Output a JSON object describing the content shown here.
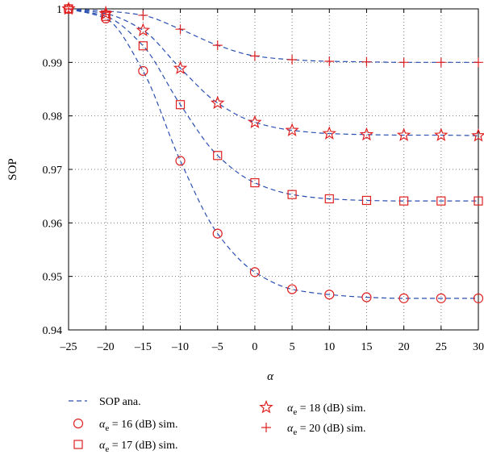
{
  "chart_data": {
    "type": "line",
    "xlabel": "α",
    "ylabel": "SOP",
    "xlim": [
      -25,
      30
    ],
    "ylim": [
      0.94,
      1.0
    ],
    "grid": true,
    "x": [
      -25,
      -20,
      -15,
      -10,
      -5,
      0,
      5,
      10,
      15,
      20,
      25,
      30
    ],
    "x_tick_labels": [
      "–25",
      "–20",
      "–15",
      "–10",
      "–5",
      "0",
      "5",
      "10",
      "15",
      "20",
      "25",
      "30"
    ],
    "y_ticks": [
      0.94,
      0.95,
      0.96,
      0.97,
      0.98,
      0.99,
      1.0
    ],
    "y_tick_labels": [
      "0.94",
      "0.95",
      "0.96",
      "0.97",
      "0.98",
      "0.99",
      "1"
    ],
    "analytic_color": "#2a4fb0",
    "marker_color": "#e02020",
    "series": [
      {
        "label_symbol": "α",
        "label_sub": "e",
        "label_rest": " = 16 (dB) sim.",
        "marker": "circle",
        "values": [
          1.0,
          0.9982,
          0.9884,
          0.9716,
          0.958,
          0.9508,
          0.9476,
          0.9466,
          0.9461,
          0.9459,
          0.9459,
          0.9459
        ]
      },
      {
        "label_symbol": "α",
        "label_sub": "e",
        "label_rest": " = 17 (dB) sim.",
        "marker": "square",
        "values": [
          1.0,
          0.9986,
          0.9931,
          0.9821,
          0.9726,
          0.9675,
          0.9653,
          0.9645,
          0.9642,
          0.9641,
          0.9641,
          0.9641
        ]
      },
      {
        "label_symbol": "α",
        "label_sub": "e",
        "label_rest": " = 18 (dB) sim.",
        "marker": "star",
        "values": [
          1.0,
          0.9991,
          0.996,
          0.9889,
          0.9824,
          0.9788,
          0.9773,
          0.9767,
          0.9765,
          0.9764,
          0.9764,
          0.9763
        ]
      },
      {
        "label_symbol": "α",
        "label_sub": "e",
        "label_rest": " = 20 (dB) sim.",
        "marker": "plus",
        "values": [
          1.0,
          0.9996,
          0.9988,
          0.9962,
          0.9932,
          0.9912,
          0.9905,
          0.9902,
          0.9901,
          0.99,
          0.99,
          0.99
        ]
      }
    ],
    "legend": {
      "analytic_label": "SOP ana."
    }
  }
}
